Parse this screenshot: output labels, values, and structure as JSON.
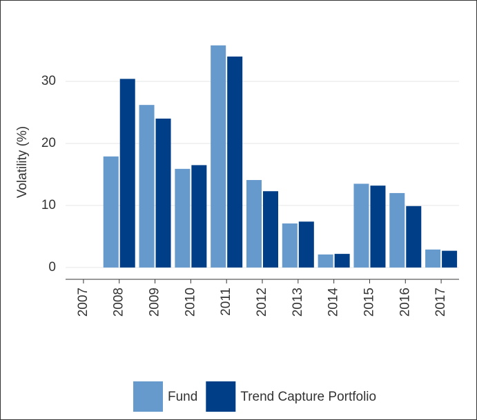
{
  "chart_data": {
    "type": "bar",
    "y_label": "Volatility (%)",
    "categories": [
      "2007",
      "2008",
      "2009",
      "2010",
      "2011",
      "2012",
      "2013",
      "2014",
      "2015",
      "2016",
      "2017"
    ],
    "series": [
      {
        "name": "Fund",
        "color": "#6699cc",
        "values": [
          null,
          17.9,
          26.2,
          15.9,
          35.8,
          14.1,
          7.1,
          2.1,
          13.5,
          12.0,
          2.9
        ]
      },
      {
        "name": "Trend Capture Portfolio",
        "color": "#003f87",
        "values": [
          null,
          30.4,
          24.0,
          16.5,
          34.0,
          12.3,
          7.4,
          2.2,
          13.2,
          9.9,
          2.7
        ]
      }
    ],
    "ylim": [
      -1.9,
      40
    ],
    "yticks": [
      0,
      10,
      20,
      30
    ],
    "grid": true,
    "legend": "bottom"
  }
}
